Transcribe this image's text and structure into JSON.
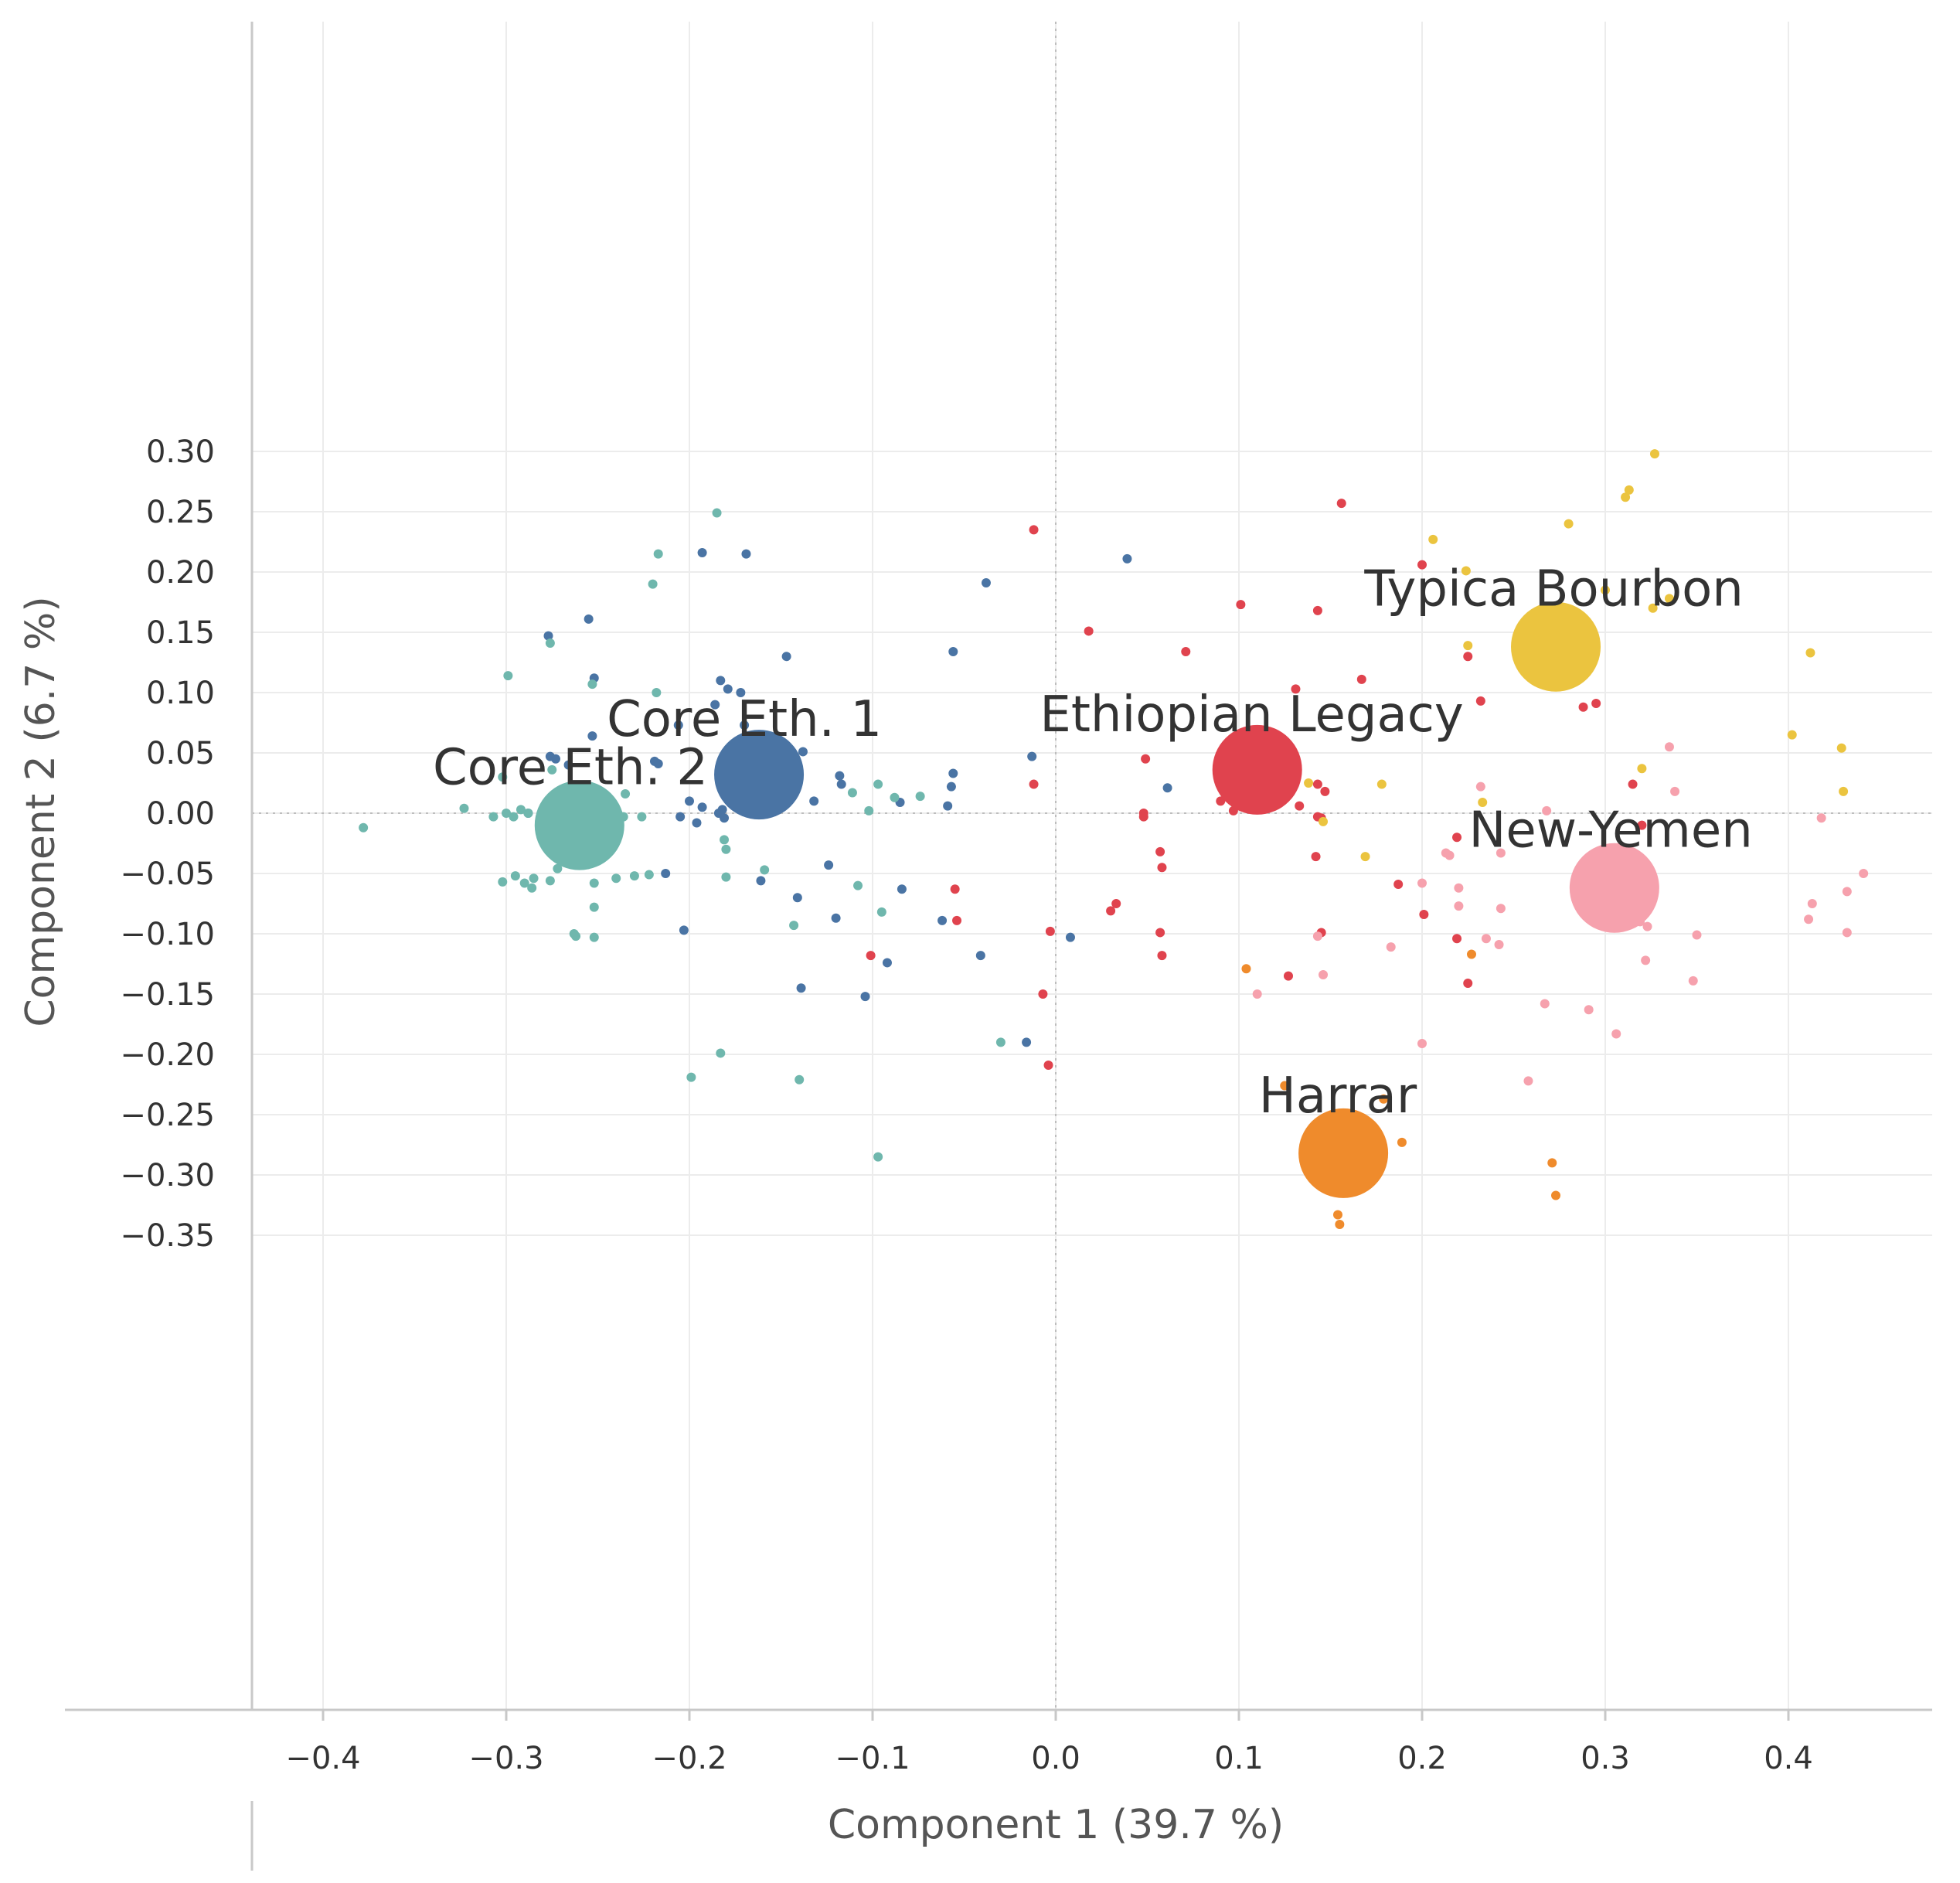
{
  "chart_data": {
    "type": "scatter",
    "xlabel": "Component 1 (39.7 %)",
    "ylabel": "Component 2 (6.7 %)",
    "xlim": [
      -0.44,
      0.48
    ],
    "ylim": [
      -0.365,
      0.32
    ],
    "x_ticks": [
      {
        "value": -0.4,
        "label": "−0.4"
      },
      {
        "value": -0.3,
        "label": "−0.3"
      },
      {
        "value": -0.2,
        "label": "−0.2"
      },
      {
        "value": -0.1,
        "label": "−0.1"
      },
      {
        "value": 0.0,
        "label": "0.0"
      },
      {
        "value": 0.1,
        "label": "0.1"
      },
      {
        "value": 0.2,
        "label": "0.2"
      },
      {
        "value": 0.3,
        "label": "0.3"
      },
      {
        "value": 0.4,
        "label": "0.4"
      }
    ],
    "y_ticks": [
      {
        "value": 0.3,
        "label": "0.30"
      },
      {
        "value": 0.25,
        "label": "0.25"
      },
      {
        "value": 0.2,
        "label": "0.20"
      },
      {
        "value": 0.15,
        "label": "0.15"
      },
      {
        "value": 0.1,
        "label": "0.10"
      },
      {
        "value": 0.05,
        "label": "0.05"
      },
      {
        "value": 0.0,
        "label": "0.00"
      },
      {
        "value": -0.05,
        "label": "−0.05"
      },
      {
        "value": -0.1,
        "label": "−0.10"
      },
      {
        "value": -0.15,
        "label": "−0.15"
      },
      {
        "value": -0.2,
        "label": "−0.20"
      },
      {
        "value": -0.25,
        "label": "−0.25"
      },
      {
        "value": -0.3,
        "label": "−0.30"
      },
      {
        "value": -0.35,
        "label": "−0.35"
      }
    ],
    "grid": true,
    "legend": "none",
    "series": [
      {
        "name": "Core Eth. 1",
        "color": "#4a74a4",
        "centroid": [
          -0.162,
          0.032
        ],
        "points": [
          [
            -0.193,
            0.216
          ],
          [
            -0.169,
            0.215
          ],
          [
            -0.038,
            0.191
          ],
          [
            0.039,
            0.211
          ],
          [
            -0.255,
            0.161
          ],
          [
            -0.277,
            0.147
          ],
          [
            -0.147,
            0.13
          ],
          [
            -0.056,
            0.134
          ],
          [
            -0.252,
            0.112
          ],
          [
            -0.183,
            0.11
          ],
          [
            -0.179,
            0.103
          ],
          [
            -0.172,
            0.1
          ],
          [
            -0.186,
            0.09
          ],
          [
            -0.206,
            0.073
          ],
          [
            -0.17,
            0.073
          ],
          [
            -0.253,
            0.064
          ],
          [
            -0.138,
            0.051
          ],
          [
            -0.276,
            0.047
          ],
          [
            -0.273,
            0.045
          ],
          [
            -0.219,
            0.043
          ],
          [
            -0.217,
            0.041
          ],
          [
            -0.266,
            0.04
          ],
          [
            -0.013,
            0.047
          ],
          [
            -0.118,
            0.031
          ],
          [
            -0.056,
            0.033
          ],
          [
            -0.117,
            0.024
          ],
          [
            -0.057,
            0.022
          ],
          [
            -0.059,
            0.006
          ],
          [
            0.061,
            0.021
          ],
          [
            -0.2,
            0.01
          ],
          [
            -0.132,
            0.01
          ],
          [
            -0.085,
            0.009
          ],
          [
            -0.193,
            0.005
          ],
          [
            -0.182,
            0.003
          ],
          [
            -0.184,
            0.0
          ],
          [
            -0.205,
            -0.003
          ],
          [
            -0.181,
            -0.004
          ],
          [
            -0.196,
            -0.008
          ],
          [
            -0.288,
            0.0
          ],
          [
            -0.213,
            -0.05
          ],
          [
            -0.161,
            -0.056
          ],
          [
            -0.124,
            -0.043
          ],
          [
            -0.141,
            -0.07
          ],
          [
            -0.084,
            -0.063
          ],
          [
            -0.12,
            -0.087
          ],
          [
            -0.062,
            -0.089
          ],
          [
            -0.203,
            -0.097
          ],
          [
            -0.092,
            -0.124
          ],
          [
            -0.041,
            -0.118
          ],
          [
            -0.139,
            -0.145
          ],
          [
            -0.104,
            -0.152
          ],
          [
            -0.016,
            -0.19
          ],
          [
            0.008,
            -0.103
          ]
        ]
      },
      {
        "name": "Core Eth. 2",
        "color": "#6fb7ad",
        "centroid": [
          -0.26,
          -0.01
        ],
        "points": [
          [
            -0.185,
            0.249
          ],
          [
            -0.217,
            0.215
          ],
          [
            -0.22,
            0.19
          ],
          [
            -0.276,
            0.141
          ],
          [
            -0.299,
            0.114
          ],
          [
            -0.253,
            0.107
          ],
          [
            -0.218,
            0.1
          ],
          [
            -0.275,
            0.036
          ],
          [
            -0.302,
            0.03
          ],
          [
            -0.323,
            0.004
          ],
          [
            -0.378,
            -0.012
          ],
          [
            -0.307,
            -0.003
          ],
          [
            -0.3,
            0.0
          ],
          [
            -0.288,
            0.0
          ],
          [
            -0.292,
            0.003
          ],
          [
            -0.296,
            -0.003
          ],
          [
            -0.254,
            0.0
          ],
          [
            -0.236,
            -0.003
          ],
          [
            -0.226,
            -0.003
          ],
          [
            -0.235,
            0.016
          ],
          [
            -0.097,
            0.024
          ],
          [
            -0.088,
            0.013
          ],
          [
            -0.074,
            0.014
          ],
          [
            -0.111,
            0.017
          ],
          [
            -0.102,
            0.002
          ],
          [
            -0.181,
            -0.022
          ],
          [
            -0.18,
            -0.03
          ],
          [
            -0.295,
            -0.052
          ],
          [
            -0.302,
            -0.057
          ],
          [
            -0.285,
            -0.054
          ],
          [
            -0.29,
            -0.058
          ],
          [
            -0.276,
            -0.056
          ],
          [
            -0.286,
            -0.062
          ],
          [
            -0.272,
            -0.046
          ],
          [
            -0.252,
            -0.058
          ],
          [
            -0.24,
            -0.054
          ],
          [
            -0.23,
            -0.052
          ],
          [
            -0.222,
            -0.051
          ],
          [
            -0.18,
            -0.053
          ],
          [
            -0.159,
            -0.047
          ],
          [
            -0.252,
            -0.078
          ],
          [
            -0.108,
            -0.06
          ],
          [
            -0.095,
            -0.082
          ],
          [
            -0.143,
            -0.093
          ],
          [
            -0.263,
            -0.1
          ],
          [
            -0.262,
            -0.102
          ],
          [
            -0.252,
            -0.103
          ],
          [
            -0.03,
            -0.19
          ],
          [
            -0.183,
            -0.199
          ],
          [
            -0.199,
            -0.219
          ],
          [
            -0.14,
            -0.221
          ],
          [
            -0.097,
            -0.285
          ]
        ]
      },
      {
        "name": "Ethiopian Legacy",
        "color": "#e0434e",
        "centroid": [
          0.11,
          0.036
        ],
        "points": [
          [
            -0.012,
            0.235
          ],
          [
            0.156,
            0.257
          ],
          [
            0.2,
            0.206
          ],
          [
            0.101,
            0.173
          ],
          [
            0.143,
            0.168
          ],
          [
            0.018,
            0.151
          ],
          [
            0.071,
            0.134
          ],
          [
            0.225,
            0.13
          ],
          [
            0.167,
            0.111
          ],
          [
            0.131,
            0.103
          ],
          [
            0.232,
            0.093
          ],
          [
            0.295,
            0.091
          ],
          [
            0.288,
            0.088
          ],
          [
            0.049,
            0.045
          ],
          [
            0.143,
            0.024
          ],
          [
            -0.012,
            0.024
          ],
          [
            0.147,
            0.018
          ],
          [
            0.09,
            0.01
          ],
          [
            0.133,
            0.006
          ],
          [
            0.097,
            0.002
          ],
          [
            0.048,
            0.0
          ],
          [
            0.048,
            -0.003
          ],
          [
            0.143,
            -0.003
          ],
          [
            0.145,
            -0.004
          ],
          [
            0.315,
            0.024
          ],
          [
            0.32,
            -0.01
          ],
          [
            0.219,
            -0.02
          ],
          [
            0.057,
            -0.032
          ],
          [
            0.142,
            -0.036
          ],
          [
            0.058,
            -0.045
          ],
          [
            0.187,
            -0.059
          ],
          [
            -0.055,
            -0.063
          ],
          [
            0.033,
            -0.075
          ],
          [
            0.03,
            -0.081
          ],
          [
            0.201,
            -0.084
          ],
          [
            -0.054,
            -0.089
          ],
          [
            -0.003,
            -0.098
          ],
          [
            0.057,
            -0.099
          ],
          [
            0.145,
            -0.099
          ],
          [
            0.219,
            -0.104
          ],
          [
            -0.101,
            -0.118
          ],
          [
            0.058,
            -0.118
          ],
          [
            0.127,
            -0.135
          ],
          [
            0.225,
            -0.141
          ],
          [
            -0.007,
            -0.15
          ],
          [
            -0.004,
            -0.209
          ]
        ]
      },
      {
        "name": "Typica Bourbon",
        "color": "#ebc43f",
        "centroid": [
          0.273,
          0.138
        ],
        "points": [
          [
            0.327,
            0.298
          ],
          [
            0.313,
            0.268
          ],
          [
            0.311,
            0.262
          ],
          [
            0.28,
            0.24
          ],
          [
            0.206,
            0.227
          ],
          [
            0.224,
            0.201
          ],
          [
            0.3,
            0.185
          ],
          [
            0.335,
            0.178
          ],
          [
            0.326,
            0.17
          ],
          [
            0.225,
            0.139
          ],
          [
            0.412,
            0.133
          ],
          [
            0.402,
            0.065
          ],
          [
            0.429,
            0.054
          ],
          [
            0.32,
            0.037
          ],
          [
            0.178,
            0.024
          ],
          [
            0.138,
            0.025
          ],
          [
            0.43,
            0.018
          ],
          [
            0.233,
            0.009
          ],
          [
            0.146,
            -0.007
          ],
          [
            0.169,
            -0.036
          ]
        ]
      },
      {
        "name": "New-Yemen",
        "color": "#f6a1ad",
        "centroid": [
          0.305,
          -0.062
        ],
        "points": [
          [
            0.335,
            0.055
          ],
          [
            0.232,
            0.022
          ],
          [
            0.338,
            0.018
          ],
          [
            0.268,
            0.002
          ],
          [
            0.418,
            -0.004
          ],
          [
            0.213,
            -0.033
          ],
          [
            0.215,
            -0.035
          ],
          [
            0.243,
            -0.033
          ],
          [
            0.441,
            -0.05
          ],
          [
            0.2,
            -0.058
          ],
          [
            0.22,
            -0.062
          ],
          [
            0.432,
            -0.065
          ],
          [
            0.413,
            -0.075
          ],
          [
            0.22,
            -0.077
          ],
          [
            0.243,
            -0.079
          ],
          [
            0.411,
            -0.088
          ],
          [
            0.319,
            -0.09
          ],
          [
            0.323,
            -0.094
          ],
          [
            0.432,
            -0.099
          ],
          [
            0.35,
            -0.101
          ],
          [
            0.143,
            -0.102
          ],
          [
            0.235,
            -0.104
          ],
          [
            0.242,
            -0.109
          ],
          [
            0.183,
            -0.111
          ],
          [
            0.322,
            -0.122
          ],
          [
            0.146,
            -0.134
          ],
          [
            0.348,
            -0.139
          ],
          [
            0.11,
            -0.15
          ],
          [
            0.267,
            -0.158
          ],
          [
            0.291,
            -0.163
          ],
          [
            0.306,
            -0.183
          ],
          [
            0.2,
            -0.191
          ],
          [
            0.258,
            -0.222
          ]
        ]
      },
      {
        "name": "Harrar",
        "color": "#ef8b2c",
        "centroid": [
          0.157,
          -0.282
        ],
        "points": [
          [
            0.104,
            -0.129
          ],
          [
            0.227,
            -0.117
          ],
          [
            0.125,
            -0.226
          ],
          [
            0.179,
            -0.237
          ],
          [
            0.189,
            -0.273
          ],
          [
            0.271,
            -0.29
          ],
          [
            0.147,
            -0.307
          ],
          [
            0.273,
            -0.317
          ],
          [
            0.154,
            -0.333
          ],
          [
            0.155,
            -0.341
          ]
        ]
      }
    ],
    "annotations": [
      {
        "text": "Core Eth. 1",
        "x": -0.17,
        "y": 0.064,
        "series": 0
      },
      {
        "text": "Core Eth. 2",
        "x": -0.265,
        "y": 0.024,
        "series": 1
      },
      {
        "text": "Ethiopian Legacy",
        "x": 0.107,
        "y": 0.068,
        "series": 2
      },
      {
        "text": "Typica Bourbon",
        "x": 0.272,
        "y": 0.172,
        "series": 3
      },
      {
        "text": "New-Yemen",
        "x": 0.303,
        "y": -0.028,
        "series": 4
      },
      {
        "text": "Harrar",
        "x": 0.154,
        "y": -0.248,
        "series": 5
      }
    ]
  }
}
